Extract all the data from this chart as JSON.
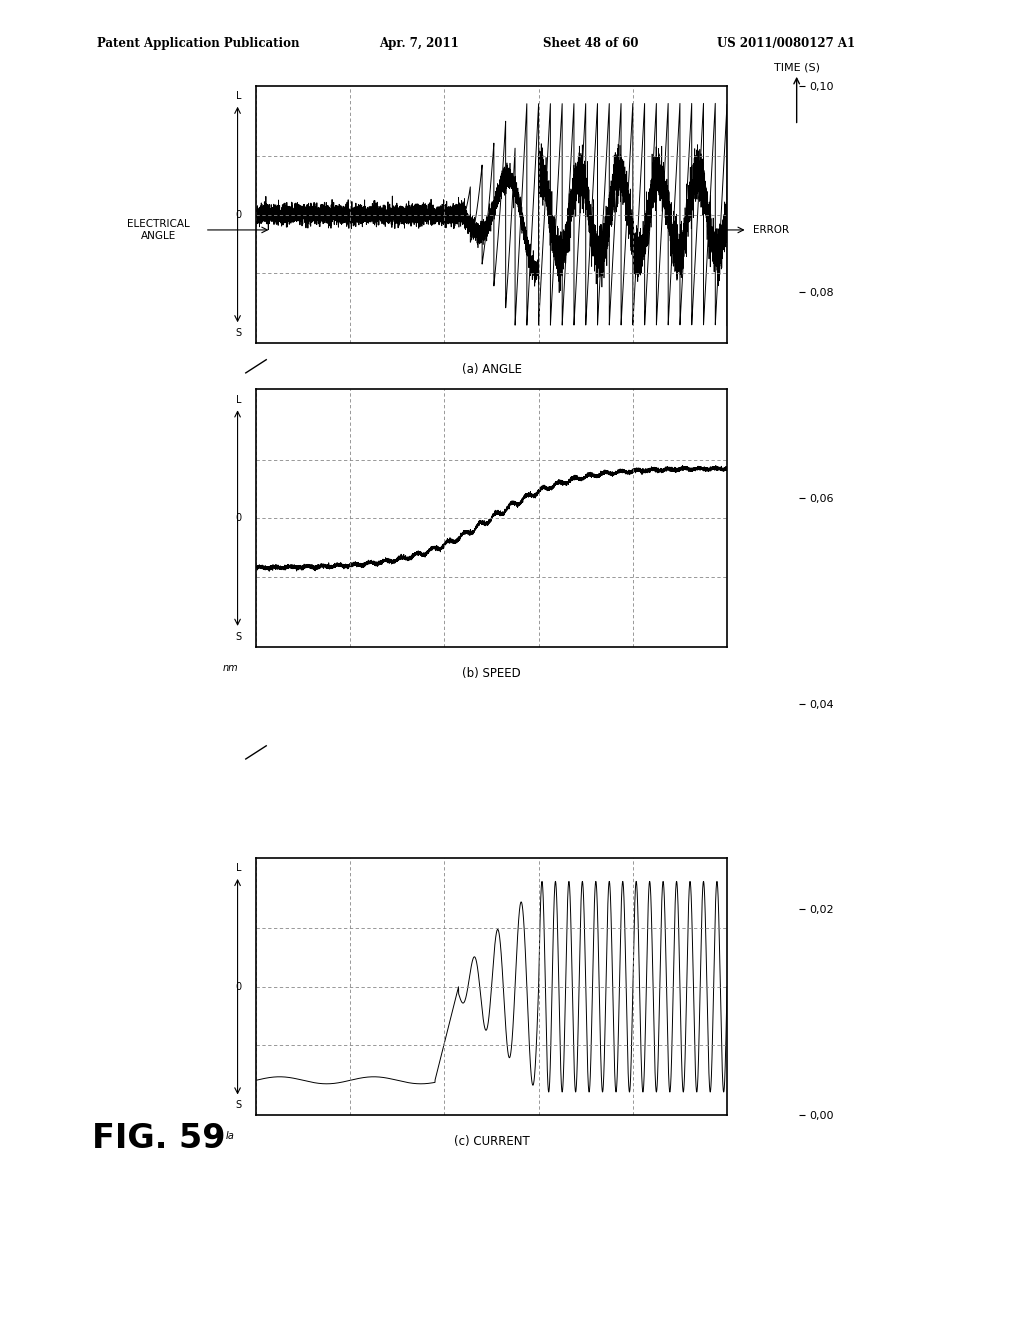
{
  "patent_header": "Patent Application Publication",
  "patent_date": "Apr. 7, 2011",
  "patent_sheet": "Sheet 48 of 60",
  "patent_number": "US 2011/0080127 A1",
  "fig_label": "FIG. 59",
  "subplot_labels": [
    "(a) ANGLE",
    "(b) SPEED",
    "(c) CURRENT"
  ],
  "time_ticks": [
    0,
    0.02,
    0.04,
    0.06,
    0.08,
    0.1
  ],
  "time_label": "TIME (S)",
  "bg_color": "#ffffff",
  "panel_bg": "#ffffff",
  "border_color": "#000000",
  "grid_color": "#aaaaaa",
  "elec_angle_label": "ELECTRICAL\nANGLE",
  "error_label": "ERROR",
  "nm_label": "nm",
  "ia_label": "Ia"
}
